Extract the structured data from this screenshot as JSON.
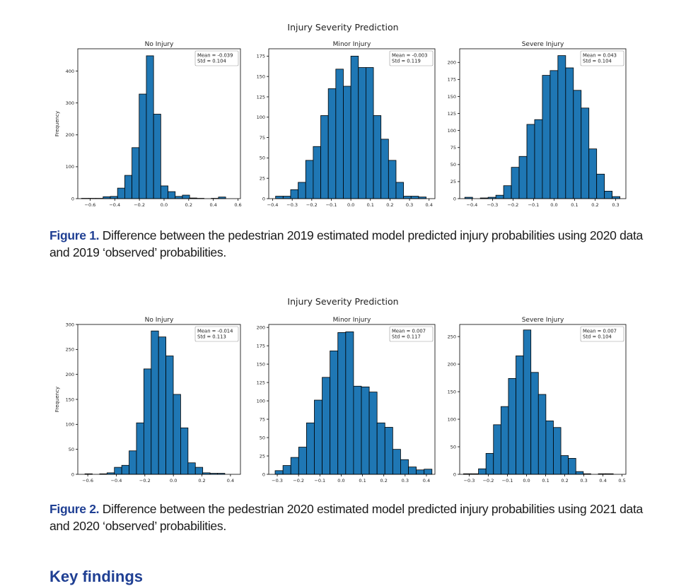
{
  "figures": [
    {
      "suptitle": "Injury Severity Prediction",
      "caption_label": "Figure 1.",
      "caption_text": " Difference between the pedestrian 2019 estimated model predicted injury probabilities using 2020 data and 2019 ‘observed’ probabilities.",
      "chart_data": [
        {
          "type": "histogram",
          "title": "No Injury",
          "ylabel": "Frequency",
          "stats_text": [
            "Mean = -0.039",
            "Std = 0.104"
          ],
          "x_ticks": [
            "-0.6",
            "-0.4",
            "-0.2",
            "0.0",
            "0.2",
            "0.4",
            "0.6"
          ],
          "y_ticks": [
            "0",
            "100",
            "200",
            "300",
            "400"
          ],
          "xlim": [
            -0.7,
            0.62
          ],
          "ylim": [
            0,
            470
          ],
          "bin_start": -0.67,
          "bin_width": 0.0585,
          "values": [
            1,
            1,
            1,
            6,
            7,
            33,
            73,
            160,
            328,
            448,
            265,
            40,
            22,
            7,
            11,
            2,
            1,
            0,
            1,
            5
          ]
        },
        {
          "type": "histogram",
          "title": "Minor Injury",
          "ylabel": "",
          "stats_text": [
            "Mean = -0.003",
            "Std = 0.119"
          ],
          "x_ticks": [
            "-0.4",
            "-0.3",
            "-0.2",
            "-0.1",
            "0.0",
            "0.1",
            "0.2",
            "0.3",
            "0.4"
          ],
          "y_ticks": [
            "0",
            "25",
            "50",
            "75",
            "100",
            "125",
            "150",
            "175"
          ],
          "xlim": [
            -0.42,
            0.43
          ],
          "ylim": [
            0,
            184
          ],
          "bin_start": -0.385,
          "bin_width": 0.0385,
          "values": [
            3,
            3,
            11,
            20,
            47,
            64,
            102,
            135,
            159,
            138,
            175,
            161,
            161,
            102,
            73,
            47,
            20,
            3,
            3,
            2
          ]
        },
        {
          "type": "histogram",
          "title": "Severe Injury",
          "ylabel": "",
          "stats_text": [
            "Mean = 0.043",
            "Std = 0.104"
          ],
          "x_ticks": [
            "-0.4",
            "-0.3",
            "-0.2",
            "-0.1",
            "0.0",
            "0.1",
            "0.2",
            "0.3"
          ],
          "y_ticks": [
            "0",
            "25",
            "50",
            "75",
            "100",
            "125",
            "150",
            "175",
            "200"
          ],
          "xlim": [
            -0.46,
            0.35
          ],
          "ylim": [
            0,
            220
          ],
          "bin_start": -0.435,
          "bin_width": 0.0378,
          "values": [
            2,
            0,
            1,
            2,
            5,
            19,
            46,
            62,
            109,
            116,
            181,
            188,
            210,
            192,
            159,
            133,
            73,
            36,
            11,
            3
          ]
        }
      ]
    },
    {
      "suptitle": "Injury Severity Prediction",
      "caption_label": "Figure 2.",
      "caption_text": " Difference between the pedestrian 2020 estimated model predicted injury probabilities using 2021 data and 2020 ‘observed’ probabilities.",
      "chart_data": [
        {
          "type": "histogram",
          "title": "No Injury",
          "ylabel": "Frequency",
          "stats_text": [
            "Mean = -0.014",
            "Std = 0.113"
          ],
          "x_ticks": [
            "-0.6",
            "-0.4",
            "-0.2",
            "0.0",
            "0.2",
            "0.4"
          ],
          "y_ticks": [
            "0",
            "50",
            "100",
            "150",
            "200",
            "250",
            "300"
          ],
          "xlim": [
            -0.67,
            0.47
          ],
          "ylim": [
            0,
            300
          ],
          "bin_start": -0.62,
          "bin_width": 0.0516,
          "values": [
            1,
            0,
            1,
            3,
            14,
            18,
            47,
            103,
            211,
            287,
            275,
            237,
            160,
            93,
            23,
            14,
            3,
            2,
            2
          ]
        },
        {
          "type": "histogram",
          "title": "Minor Injury",
          "ylabel": "",
          "stats_text": [
            "Mean = 0.007",
            "Std = 0.117"
          ],
          "x_ticks": [
            "-0.3",
            "-0.2",
            "-0.1",
            "0.0",
            "0.1",
            "0.2",
            "0.3",
            "0.4"
          ],
          "y_ticks": [
            "0",
            "25",
            "50",
            "75",
            "100",
            "125",
            "150",
            "175",
            "200"
          ],
          "xlim": [
            -0.34,
            0.44
          ],
          "ylim": [
            0,
            204
          ],
          "bin_start": -0.31,
          "bin_width": 0.0368,
          "values": [
            5,
            12,
            23,
            37,
            70,
            101,
            132,
            168,
            193,
            194,
            120,
            119,
            112,
            70,
            64,
            34,
            20,
            10,
            6,
            7
          ]
        },
        {
          "type": "histogram",
          "title": "Severe Injury",
          "ylabel": "",
          "stats_text": [
            "Mean = 0.007",
            "Std = 0.104"
          ],
          "x_ticks": [
            "-0.3",
            "-0.2",
            "-0.1",
            "0.0",
            "0.1",
            "0.2",
            "0.3",
            "0.4",
            "0.5"
          ],
          "y_ticks": [
            "0",
            "50",
            "100",
            "150",
            "200",
            "250"
          ],
          "xlim": [
            -0.35,
            0.52
          ],
          "ylim": [
            0,
            272
          ],
          "bin_start": -0.33,
          "bin_width": 0.0392,
          "values": [
            1,
            1,
            10,
            38,
            90,
            123,
            174,
            215,
            262,
            185,
            145,
            97,
            85,
            34,
            29,
            5,
            1,
            0,
            1,
            1
          ]
        }
      ]
    }
  ],
  "next_heading": "Key findings"
}
